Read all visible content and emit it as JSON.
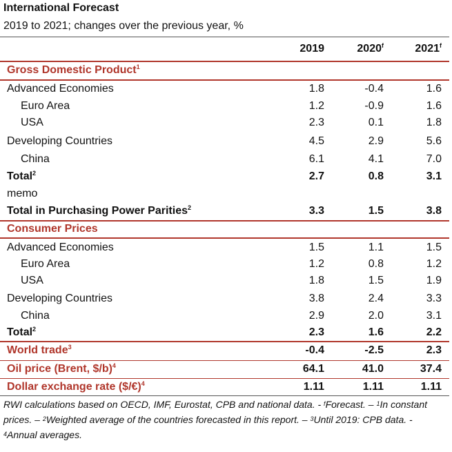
{
  "title": "International Forecast",
  "subtitle": "2019 to 2021; changes over the previous year, %",
  "columns": [
    {
      "label": "2019",
      "sup": ""
    },
    {
      "label": "2020",
      "sup": "f"
    },
    {
      "label": "2021",
      "sup": "f"
    }
  ],
  "sections": {
    "gdp": {
      "label": "Gross Domestic Product",
      "sup": "1"
    },
    "cpi": {
      "label": "Consumer Prices",
      "sup": ""
    }
  },
  "rows": {
    "gdp_adv": {
      "label": "Advanced Economies",
      "values": [
        "1.8",
        "-0.4",
        "1.6"
      ]
    },
    "gdp_euro": {
      "label": "Euro Area",
      "values": [
        "1.2",
        "-0.9",
        "1.6"
      ]
    },
    "gdp_usa": {
      "label": "USA",
      "values": [
        "2.3",
        "0.1",
        "1.8"
      ]
    },
    "gdp_dev": {
      "label": "Developing Countries",
      "values": [
        "4.5",
        "2.9",
        "5.6"
      ]
    },
    "gdp_china": {
      "label": "China",
      "values": [
        "6.1",
        "4.1",
        "7.0"
      ]
    },
    "gdp_total": {
      "label": "Total",
      "sup": "2",
      "values": [
        "2.7",
        "0.8",
        "3.1"
      ]
    },
    "memo": {
      "label": "memo"
    },
    "gdp_ppp": {
      "label": "Total in Purchasing Power Parities",
      "sup": "2",
      "values": [
        "3.3",
        "1.5",
        "3.8"
      ]
    },
    "cpi_adv": {
      "label": "Advanced Economies",
      "values": [
        "1.5",
        "1.1",
        "1.5"
      ]
    },
    "cpi_euro": {
      "label": "Euro Area",
      "values": [
        "1.2",
        "0.8",
        "1.2"
      ]
    },
    "cpi_usa": {
      "label": "USA",
      "values": [
        "1.8",
        "1.5",
        "1.9"
      ]
    },
    "cpi_dev": {
      "label": "Developing Countries",
      "values": [
        "3.8",
        "2.4",
        "3.3"
      ]
    },
    "cpi_china": {
      "label": "China",
      "values": [
        "2.9",
        "2.0",
        "3.1"
      ]
    },
    "cpi_total": {
      "label": "Total",
      "sup": "2",
      "values": [
        "2.3",
        "1.6",
        "2.2"
      ]
    },
    "trade": {
      "label": "World trade",
      "sup": "3",
      "values": [
        "-0.4",
        "-2.5",
        "2.3"
      ]
    },
    "oil": {
      "label": "Oil price (Brent, $/b)",
      "sup": "4",
      "values": [
        "64.1",
        "41.0",
        "37.4"
      ]
    },
    "fx": {
      "label": "Dollar exchange rate ($/€)",
      "sup": "4",
      "values": [
        "1.11",
        "1.11",
        "1.11"
      ]
    }
  },
  "footnote": {
    "p1": "RWI calculations based on OECD, IMF, Eurostat, CPB and national data. - ",
    "s_f": "f",
    "p2": "Forecast. – ",
    "s1": "1",
    "p3": "In constant prices. – ",
    "s2": "2",
    "p4": "Weighted average of the countries forecasted in this report. – ",
    "s3": "3",
    "p5": "Until 2019: CPB data. - ",
    "s4": "4",
    "p6": "Annual averages."
  },
  "colors": {
    "accent": "#b0362b",
    "text": "#111111",
    "rule": "#555555"
  }
}
